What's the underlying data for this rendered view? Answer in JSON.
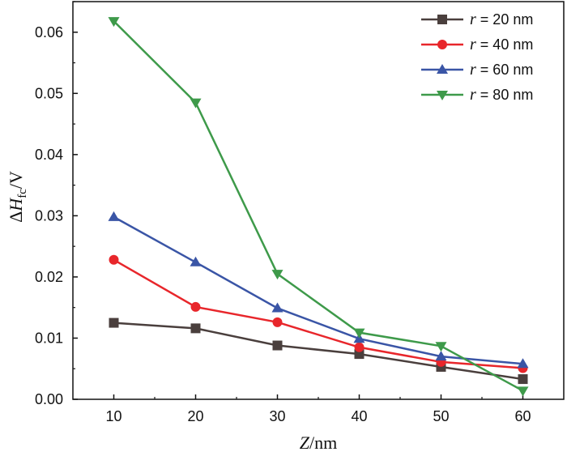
{
  "chart_data": {
    "type": "line",
    "x": [
      10,
      20,
      30,
      40,
      50,
      60
    ],
    "xlim": [
      5,
      65
    ],
    "ylim": [
      0,
      0.065
    ],
    "xticks": [
      10,
      20,
      30,
      40,
      50,
      60
    ],
    "yticks": [
      0.0,
      0.01,
      0.02,
      0.03,
      0.04,
      0.05,
      0.06
    ],
    "ytick_labels": [
      "0.00",
      "0.01",
      "0.02",
      "0.03",
      "0.04",
      "0.05",
      "0.06"
    ],
    "xlabel": {
      "var": "Z",
      "unit": "/nm"
    },
    "ylabel": {
      "prefix": "Δ",
      "var": "H",
      "sub": "fc",
      "unit": "/V"
    },
    "legend_position": "top-right",
    "grid": false,
    "series": [
      {
        "name": "r = 20 nm",
        "name_var": "r",
        "name_rest": " = 20 nm",
        "color": "#4a3f3d",
        "marker": "square",
        "values": [
          0.0125,
          0.0116,
          0.0088,
          0.0074,
          0.0053,
          0.0033
        ]
      },
      {
        "name": "r = 40 nm",
        "name_var": "r",
        "name_rest": " = 40 nm",
        "color": "#e8262b",
        "marker": "circle",
        "values": [
          0.0228,
          0.0151,
          0.0126,
          0.0085,
          0.0061,
          0.0051
        ]
      },
      {
        "name": "r = 60 nm",
        "name_var": "r",
        "name_rest": " = 60 nm",
        "color": "#3a55a6",
        "marker": "triangle-up",
        "values": [
          0.0298,
          0.0224,
          0.0149,
          0.0099,
          0.007,
          0.0058
        ]
      },
      {
        "name": "r = 80 nm",
        "name_var": "r",
        "name_rest": " = 80 nm",
        "color": "#3e9a4a",
        "marker": "triangle-down",
        "values": [
          0.0618,
          0.0485,
          0.0205,
          0.0109,
          0.0087,
          0.0014
        ]
      }
    ]
  }
}
